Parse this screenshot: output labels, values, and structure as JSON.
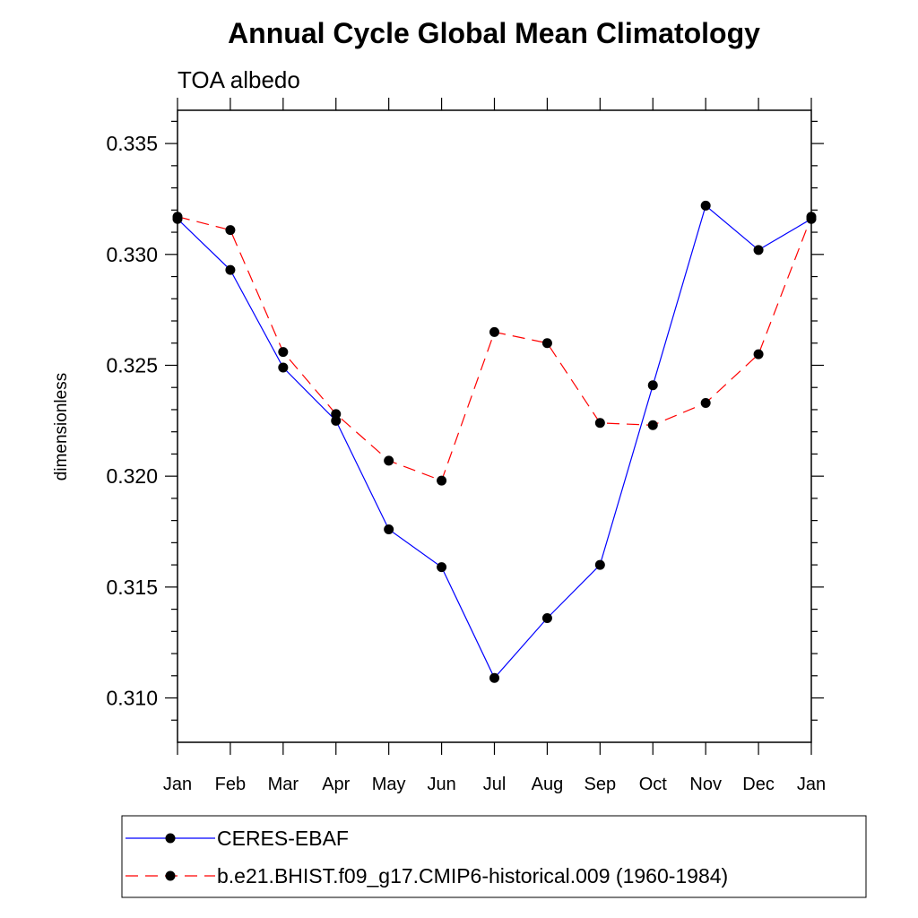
{
  "chart_data": {
    "type": "line",
    "title": "Annual Cycle Global Mean Climatology",
    "subtitle": "TOA albedo",
    "xlabel": "",
    "ylabel": "dimensionless",
    "categories": [
      "Jan",
      "Feb",
      "Mar",
      "Apr",
      "May",
      "Jun",
      "Jul",
      "Aug",
      "Sep",
      "Oct",
      "Nov",
      "Dec",
      "Jan"
    ],
    "ylim": [
      0.308,
      0.3365
    ],
    "yticks": [
      "0.310",
      "0.315",
      "0.320",
      "0.325",
      "0.330",
      "0.335"
    ],
    "series": [
      {
        "name": "CERES-EBAF",
        "color": "#0000ff",
        "style": "solid",
        "values": [
          0.3316,
          0.3293,
          0.3249,
          0.3225,
          0.3176,
          0.3159,
          0.3109,
          0.3136,
          0.316,
          0.3241,
          0.3322,
          0.3302,
          0.3316
        ]
      },
      {
        "name": "b.e21.BHIST.f09_g17.CMIP6-historical.009 (1960-1984)",
        "color": "#ff0000",
        "style": "dashed",
        "values": [
          0.3317,
          0.3311,
          0.3256,
          0.3228,
          0.3207,
          0.3198,
          0.3265,
          0.326,
          0.3224,
          0.3223,
          0.3233,
          0.3255,
          0.3317
        ]
      }
    ],
    "grid": false,
    "legend_position": "bottom"
  }
}
